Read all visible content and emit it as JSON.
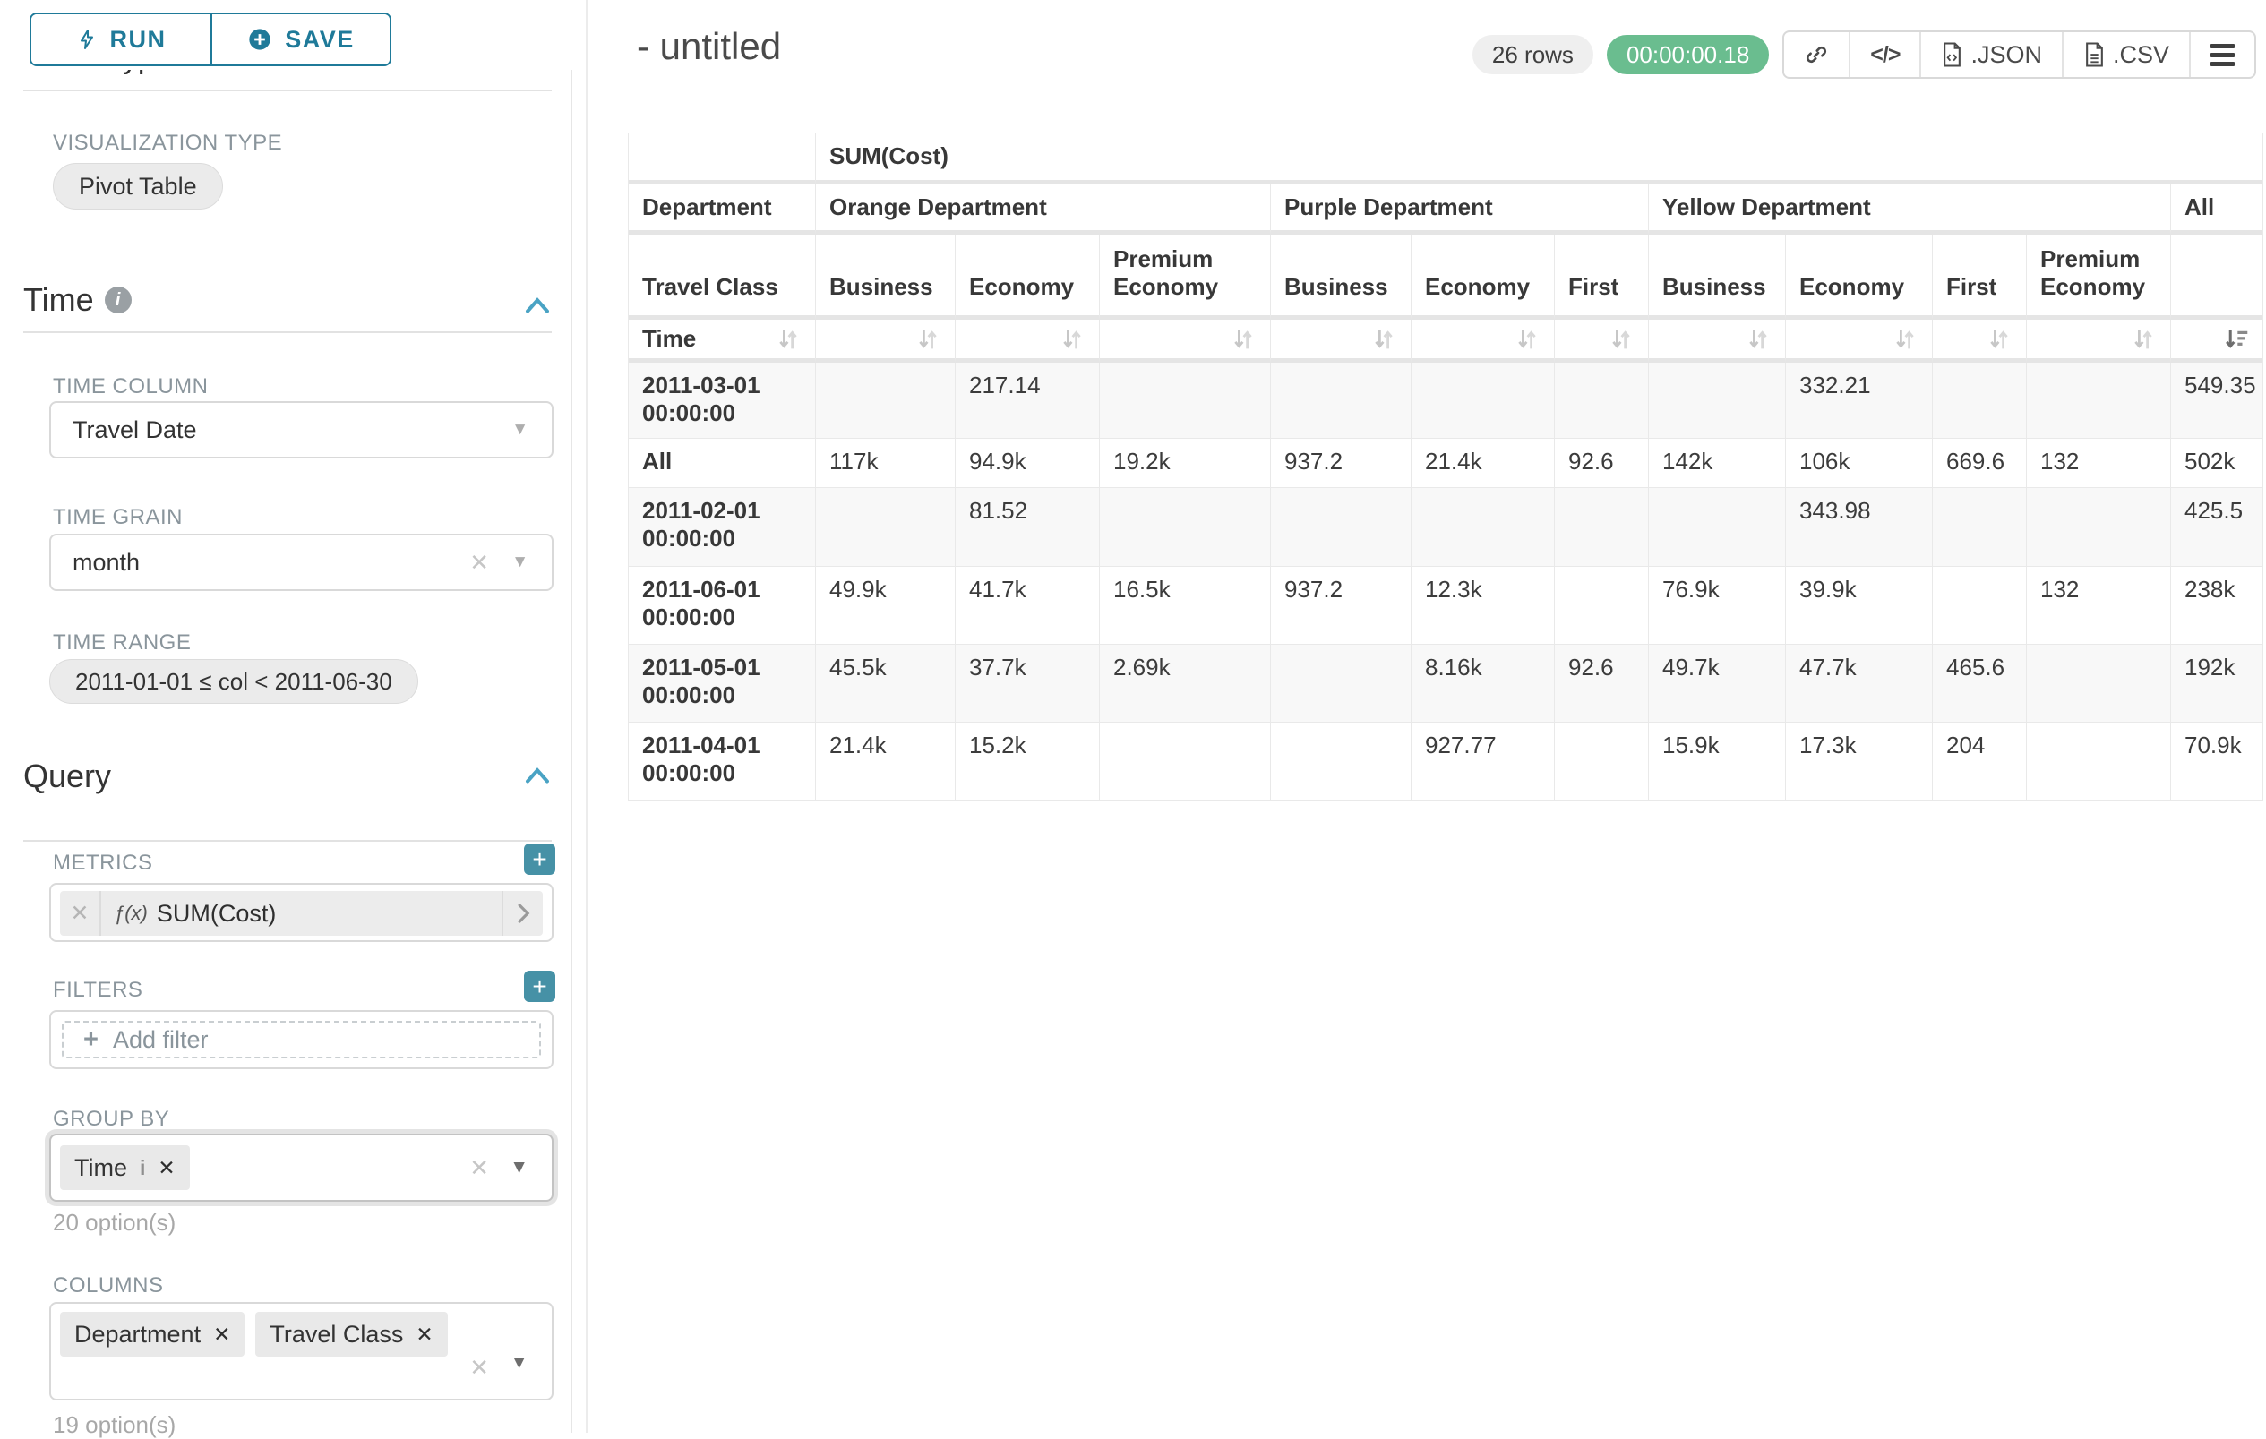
{
  "sidebar": {
    "run_button": "RUN",
    "save_button": "SAVE",
    "chart_type_heading": "Chart Type",
    "visualization_type_label": "VISUALIZATION TYPE",
    "visualization_type_value": "Pivot Table",
    "time_heading": "Time",
    "time_column_label": "TIME COLUMN",
    "time_column_value": "Travel Date",
    "time_grain_label": "TIME GRAIN",
    "time_grain_value": "month",
    "time_range_label": "TIME RANGE",
    "time_range_value": "2011-01-01 ≤ col < 2011-06-30",
    "query_heading": "Query",
    "metrics_label": "METRICS",
    "metric_fx": "ƒ(x)",
    "metric_value": "SUM(Cost)",
    "filters_label": "FILTERS",
    "add_filter_placeholder": "Add filter",
    "group_by_label": "GROUP BY",
    "group_by_chips": [
      "Time"
    ],
    "group_by_options_count": "20 option(s)",
    "columns_label": "COLUMNS",
    "columns_chips": [
      "Department",
      "Travel Class"
    ],
    "columns_options_count": "19 option(s)"
  },
  "header": {
    "title": "- untitled",
    "row_count_badge": "26 rows",
    "timer_badge": "00:00:00.18",
    "json_export_label": ".JSON",
    "csv_export_label": ".CSV"
  },
  "colors": {
    "accent_teal": "#1f7a99",
    "add_button_teal": "#4691a6",
    "timer_green": "#6abd8f",
    "collapse_blue": "#4aa3c4"
  },
  "pivot": {
    "metric_header": "SUM(Cost)",
    "corner_department": "Department",
    "corner_travel_class": "Travel Class",
    "corner_time": "Time",
    "column_groups": [
      {
        "label": "Orange Department",
        "columns": [
          "Business",
          "Economy",
          "Premium Economy"
        ]
      },
      {
        "label": "Purple Department",
        "columns": [
          "Business",
          "Economy",
          "First"
        ]
      },
      {
        "label": "Yellow Department",
        "columns": [
          "Business",
          "Economy",
          "First",
          "Premium Economy"
        ]
      },
      {
        "label": "All",
        "columns": [
          ""
        ]
      }
    ],
    "sorted_column_index": 10,
    "rows": [
      {
        "label": "2011-03-01 00:00:00",
        "values": [
          "",
          "217.14",
          "",
          "",
          "",
          "",
          "",
          "332.21",
          "",
          "",
          "549.35"
        ]
      },
      {
        "label": "All",
        "values": [
          "117k",
          "94.9k",
          "19.2k",
          "937.2",
          "21.4k",
          "92.6",
          "142k",
          "106k",
          "669.6",
          "132",
          "502k"
        ]
      },
      {
        "label": "2011-02-01 00:00:00",
        "values": [
          "",
          "81.52",
          "",
          "",
          "",
          "",
          "",
          "343.98",
          "",
          "",
          "425.5"
        ]
      },
      {
        "label": "2011-06-01 00:00:00",
        "values": [
          "49.9k",
          "41.7k",
          "16.5k",
          "937.2",
          "12.3k",
          "",
          "76.9k",
          "39.9k",
          "",
          "132",
          "238k"
        ]
      },
      {
        "label": "2011-05-01 00:00:00",
        "values": [
          "45.5k",
          "37.7k",
          "2.69k",
          "",
          "8.16k",
          "92.6",
          "49.7k",
          "47.7k",
          "465.6",
          "",
          "192k"
        ]
      },
      {
        "label": "2011-04-01 00:00:00",
        "values": [
          "21.4k",
          "15.2k",
          "",
          "",
          "927.77",
          "",
          "15.9k",
          "17.3k",
          "204",
          "",
          "70.9k"
        ]
      }
    ]
  }
}
